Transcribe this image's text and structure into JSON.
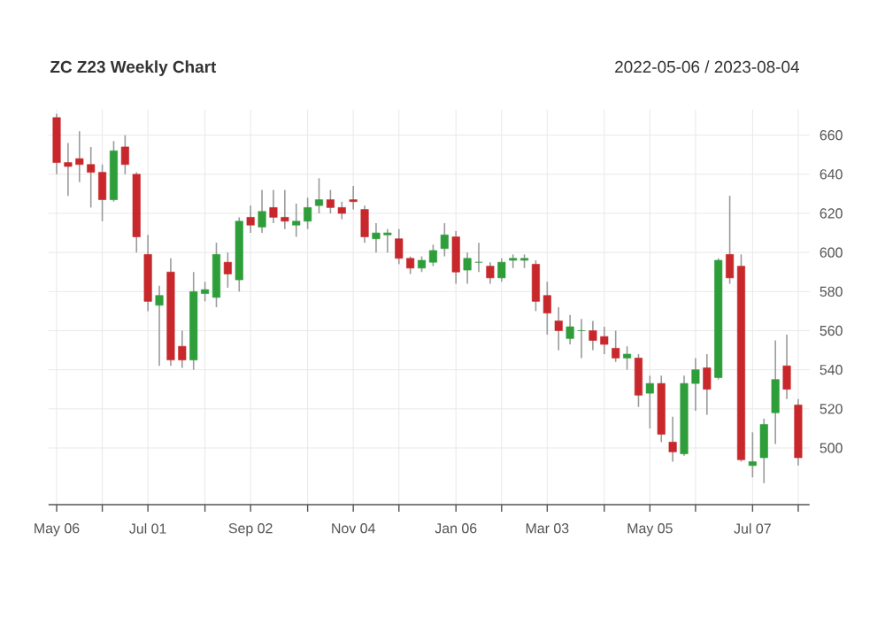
{
  "chart_data": {
    "type": "candlestick",
    "title": "ZC Z23 Weekly Chart",
    "subtitle": "2022-05-06 / 2023-08-04",
    "x": [
      "2022-05-06",
      "2022-05-13",
      "2022-05-20",
      "2022-05-27",
      "2022-06-03",
      "2022-06-10",
      "2022-06-17",
      "2022-06-24",
      "2022-07-01",
      "2022-07-08",
      "2022-07-15",
      "2022-07-22",
      "2022-07-29",
      "2022-08-05",
      "2022-08-12",
      "2022-08-19",
      "2022-08-26",
      "2022-09-02",
      "2022-09-09",
      "2022-09-16",
      "2022-09-23",
      "2022-09-30",
      "2022-10-07",
      "2022-10-14",
      "2022-10-21",
      "2022-10-28",
      "2022-11-04",
      "2022-11-11",
      "2022-11-18",
      "2022-11-25",
      "2022-12-02",
      "2022-12-09",
      "2022-12-16",
      "2022-12-23",
      "2022-12-30",
      "2023-01-06",
      "2023-01-13",
      "2023-01-20",
      "2023-01-27",
      "2023-02-03",
      "2023-02-10",
      "2023-02-17",
      "2023-02-24",
      "2023-03-03",
      "2023-03-10",
      "2023-03-17",
      "2023-03-24",
      "2023-03-31",
      "2023-04-07",
      "2023-04-14",
      "2023-04-21",
      "2023-04-28",
      "2023-05-05",
      "2023-05-12",
      "2023-05-19",
      "2023-05-26",
      "2023-06-02",
      "2023-06-09",
      "2023-06-16",
      "2023-06-23",
      "2023-06-30",
      "2023-07-07",
      "2023-07-14",
      "2023-07-21",
      "2023-07-28",
      "2023-08-04"
    ],
    "ohlc": [
      [
        669,
        671,
        640,
        646
      ],
      [
        646,
        656,
        629,
        644
      ],
      [
        648,
        662,
        636,
        645
      ],
      [
        645,
        654,
        623,
        641
      ],
      [
        641,
        645,
        616,
        627
      ],
      [
        627,
        657,
        626,
        652
      ],
      [
        654,
        660,
        640,
        645
      ],
      [
        640,
        641,
        600,
        608
      ],
      [
        599,
        609,
        570,
        575
      ],
      [
        573,
        583,
        542,
        578
      ],
      [
        590,
        597,
        542,
        545
      ],
      [
        552,
        560,
        541,
        545
      ],
      [
        545,
        590,
        540,
        580
      ],
      [
        579,
        585,
        575,
        581
      ],
      [
        577,
        605,
        572,
        599
      ],
      [
        595,
        600,
        582,
        589
      ],
      [
        586,
        618,
        580,
        616
      ],
      [
        618,
        624,
        610,
        614
      ],
      [
        613,
        632,
        610,
        621
      ],
      [
        623,
        632,
        615,
        618
      ],
      [
        618,
        632,
        612,
        616
      ],
      [
        614,
        625,
        608,
        616
      ],
      [
        616,
        628,
        612,
        623
      ],
      [
        624,
        638,
        620,
        627
      ],
      [
        627,
        632,
        620,
        623
      ],
      [
        623,
        626,
        617,
        620
      ],
      [
        627,
        634,
        622,
        626
      ],
      [
        622,
        624,
        605,
        608
      ],
      [
        607,
        615,
        600,
        610
      ],
      [
        609,
        612,
        600,
        610
      ],
      [
        607,
        612,
        594,
        597
      ],
      [
        597,
        598,
        589,
        592
      ],
      [
        592,
        598,
        590,
        596
      ],
      [
        595,
        604,
        593,
        601
      ],
      [
        602,
        615,
        598,
        609
      ],
      [
        608,
        611,
        584,
        590
      ],
      [
        591,
        600,
        584,
        597
      ],
      [
        595,
        605,
        590,
        595
      ],
      [
        593,
        595,
        584,
        587
      ],
      [
        587,
        597,
        585,
        595
      ],
      [
        596,
        599,
        592,
        597
      ],
      [
        596,
        599,
        592,
        597
      ],
      [
        594,
        596,
        570,
        575
      ],
      [
        578,
        585,
        558,
        569
      ],
      [
        565,
        572,
        550,
        560
      ],
      [
        556,
        568,
        553,
        562
      ],
      [
        560,
        566,
        546,
        560
      ],
      [
        560,
        565,
        550,
        555
      ],
      [
        557,
        562,
        548,
        553
      ],
      [
        551,
        560,
        544,
        546
      ],
      [
        546,
        552,
        540,
        548
      ],
      [
        546,
        548,
        521,
        527
      ],
      [
        528,
        537,
        510,
        533
      ],
      [
        533,
        537,
        503,
        507
      ],
      [
        503,
        516,
        493,
        498
      ],
      [
        497,
        537,
        496,
        533
      ],
      [
        533,
        546,
        519,
        540
      ],
      [
        541,
        548,
        517,
        530
      ],
      [
        536,
        597,
        535,
        596
      ],
      [
        599,
        629,
        584,
        587
      ],
      [
        593,
        599,
        493,
        494
      ],
      [
        491,
        508,
        485,
        493
      ],
      [
        495,
        515,
        482,
        512
      ],
      [
        518,
        555,
        502,
        535
      ],
      [
        542,
        558,
        525,
        530
      ],
      [
        522,
        525,
        491,
        495
      ]
    ],
    "xlim": [
      "2022-05-01",
      "2023-08-11"
    ],
    "xticks": [
      {
        "value": "2022-05-06",
        "label": "May 06"
      },
      {
        "value": "2022-06-03",
        "label": null
      },
      {
        "value": "2022-07-01",
        "label": "Jul 01"
      },
      {
        "value": "2022-08-05",
        "label": null
      },
      {
        "value": "2022-09-02",
        "label": "Sep 02"
      },
      {
        "value": "2022-10-07",
        "label": null
      },
      {
        "value": "2022-11-04",
        "label": "Nov 04"
      },
      {
        "value": "2022-12-02",
        "label": null
      },
      {
        "value": "2023-01-06",
        "label": "Jan 06"
      },
      {
        "value": "2023-02-03",
        "label": null
      },
      {
        "value": "2023-03-03",
        "label": "Mar 03"
      },
      {
        "value": "2023-04-07",
        "label": null
      },
      {
        "value": "2023-05-05",
        "label": "May 05"
      },
      {
        "value": "2023-06-02",
        "label": null
      },
      {
        "value": "2023-07-07",
        "label": "Jul 07"
      },
      {
        "value": "2023-08-04",
        "label": null
      }
    ],
    "ylim": [
      471,
      673
    ],
    "yticks": [
      500,
      520,
      540,
      560,
      580,
      600,
      620,
      640,
      660
    ],
    "grid": true
  }
}
